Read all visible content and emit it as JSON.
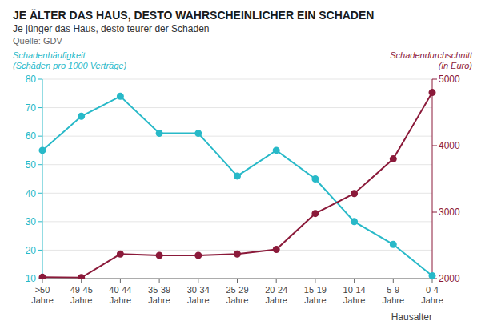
{
  "chart_data": {
    "type": "line",
    "title": "JE ÄLTER DAS HAUS, DESTO WAHRSCHEINLICHER EIN SCHADEN",
    "subtitle": "Je jünger das Haus, desto teurer der Schaden",
    "source": "Quelle: GDV",
    "xlabel": "Hausalter",
    "categories": [
      ">50\nJahre",
      "49-45\nJahre",
      "40-44\nJahre",
      "35-39\nJahre",
      "30-34\nJahre",
      "25-29\nJahre",
      "20-24\nJahre",
      "15-19\nJahre",
      "10-14\nJahre",
      "5-9\nJahre",
      "0-4\nJahre"
    ],
    "series": [
      {
        "name": "Schadenhäufigkeit\n(Schäden pro 1000 Verträge)",
        "color": "#28b9c8",
        "marker": "circle",
        "values": [
          55,
          67,
          74,
          61,
          61,
          46,
          55,
          45,
          30,
          22,
          11
        ]
      },
      {
        "name": "Schadendurchschnitt\n(in Euro)",
        "color": "#8b1a3a",
        "marker": "circle",
        "axis": "y2",
        "values": [
          2020,
          2015,
          2370,
          2350,
          2350,
          2370,
          2440,
          2980,
          3280,
          3800,
          4800
        ]
      }
    ],
    "ylim": [
      10,
      80
    ],
    "yticks": [
      10,
      20,
      30,
      40,
      50,
      60,
      70,
      80
    ],
    "y2lim": [
      2000,
      5000
    ],
    "y2ticks": [
      2000,
      3000,
      4000,
      5000
    ],
    "grid": true
  }
}
